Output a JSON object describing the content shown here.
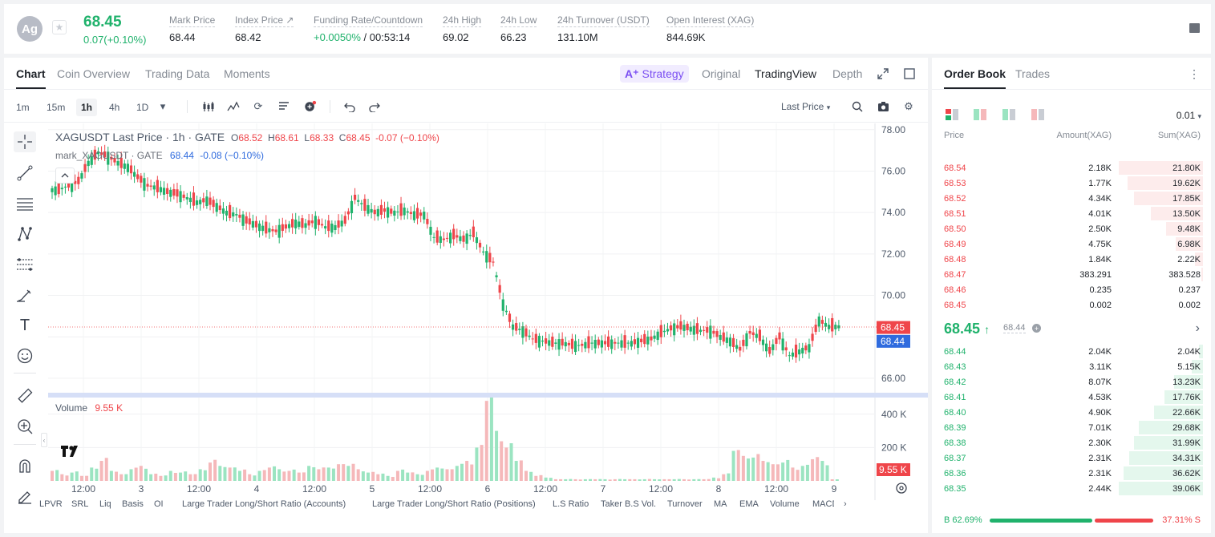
{
  "ticker": {
    "avatar": "Ag",
    "last_price": "68.45",
    "change": "0.07(+0.10%)",
    "stats": [
      {
        "label": "Mark Price",
        "value": "68.44"
      },
      {
        "label": "Index Price ↗",
        "value": "68.42"
      },
      {
        "label": "Funding Rate/Countdown",
        "value_green": "+0.0050%",
        "value": " / 00:53:14"
      },
      {
        "label": "24h High",
        "value": "69.02"
      },
      {
        "label": "24h Low",
        "value": "66.23"
      },
      {
        "label": "24h Turnover (USDT)",
        "value": "131.10M"
      },
      {
        "label": "Open Interest (XAG)",
        "value": "844.69K"
      }
    ]
  },
  "chart_tabs": [
    "Chart",
    "Coin Overview",
    "Trading Data",
    "Moments"
  ],
  "view_tabs": [
    "Original",
    "TradingView",
    "Depth"
  ],
  "strategy_label": "Strategy",
  "timeframes": [
    "1m",
    "15m",
    "1h",
    "4h",
    "1D"
  ],
  "last_price_select": "Last Price",
  "legend": {
    "title": "XAGUSDT Last Price · 1h · GATE",
    "o_label": "O",
    "o": "68.52",
    "h_label": "H",
    "h": "68.61",
    "l_label": "L",
    "l": "68.33",
    "c_label": "C",
    "c": "68.45",
    "chg": "-0.07 (−0.10%)",
    "mark_title": "mark_XAGUSDT · GATE",
    "mark_val": "68.44",
    "mark_chg": "-0.08 (−0.10%)",
    "volume_label": "Volume",
    "volume_val": "9.55 K"
  },
  "price_axis": [
    "78.00",
    "76.00",
    "74.00",
    "72.00",
    "70.00",
    "66.00"
  ],
  "price_tags": {
    "last": "68.45",
    "mark": "68.44"
  },
  "volume_axis": [
    "400 K",
    "200 K"
  ],
  "volume_tag": "9.55 K",
  "time_axis": [
    "12:00",
    "3",
    "12:00",
    "4",
    "12:00",
    "5",
    "12:00",
    "6",
    "12:00",
    "7",
    "12:00",
    "8",
    "12:00",
    "9"
  ],
  "indicators": [
    "LPVR",
    "SRL",
    "Liq",
    "Basis",
    "OI",
    "Large Trader Long/Short Ratio (Accounts)",
    "Large Trader Long/Short Ratio (Positions)",
    "L.S Ratio",
    "Taker B.S Vol.",
    "Turnover",
    "MA",
    "EMA",
    "Volume",
    "MACD"
  ],
  "book_tabs": [
    "Order Book",
    "Trades"
  ],
  "precision": "0.01",
  "book_headers": {
    "price": "Price",
    "amount": "Amount(XAG)",
    "sum": "Sum(XAG)"
  },
  "asks": [
    {
      "price": "68.54",
      "amount": "2.18K",
      "sum": "21.80K",
      "depth": 1.0
    },
    {
      "price": "68.53",
      "amount": "1.77K",
      "sum": "19.62K",
      "depth": 0.9
    },
    {
      "price": "68.52",
      "amount": "4.34K",
      "sum": "17.85K",
      "depth": 0.82
    },
    {
      "price": "68.51",
      "amount": "4.01K",
      "sum": "13.50K",
      "depth": 0.62
    },
    {
      "price": "68.50",
      "amount": "2.50K",
      "sum": "9.48K",
      "depth": 0.44
    },
    {
      "price": "68.49",
      "amount": "4.75K",
      "sum": "6.98K",
      "depth": 0.32
    },
    {
      "price": "68.48",
      "amount": "1.84K",
      "sum": "2.22K",
      "depth": 0.1
    },
    {
      "price": "68.47",
      "amount": "383.291",
      "sum": "383.528",
      "depth": 0.02
    },
    {
      "price": "68.46",
      "amount": "0.235",
      "sum": "0.237",
      "depth": 0.0
    },
    {
      "price": "68.45",
      "amount": "0.002",
      "sum": "0.002",
      "depth": 0.0
    }
  ],
  "mid": {
    "price": "68.45",
    "mark": "68.44"
  },
  "bids": [
    {
      "price": "68.44",
      "amount": "2.04K",
      "sum": "2.04K",
      "depth": 0.05
    },
    {
      "price": "68.43",
      "amount": "3.11K",
      "sum": "5.15K",
      "depth": 0.13
    },
    {
      "price": "68.42",
      "amount": "8.07K",
      "sum": "13.23K",
      "depth": 0.34
    },
    {
      "price": "68.41",
      "amount": "4.53K",
      "sum": "17.76K",
      "depth": 0.46
    },
    {
      "price": "68.40",
      "amount": "4.90K",
      "sum": "22.66K",
      "depth": 0.58
    },
    {
      "price": "68.39",
      "amount": "7.01K",
      "sum": "29.68K",
      "depth": 0.76
    },
    {
      "price": "68.38",
      "amount": "2.30K",
      "sum": "31.99K",
      "depth": 0.82
    },
    {
      "price": "68.37",
      "amount": "2.31K",
      "sum": "34.31K",
      "depth": 0.88
    },
    {
      "price": "68.36",
      "amount": "2.31K",
      "sum": "36.62K",
      "depth": 0.94
    },
    {
      "price": "68.35",
      "amount": "2.44K",
      "sum": "39.06K",
      "depth": 1.0
    }
  ],
  "ratio": {
    "buy": "B 62.69%",
    "sell": "37.31% S",
    "buy_pct": 62.69
  },
  "colors": {
    "up": "#20b26c",
    "down": "#ef454a",
    "accent": "#7b4ff2",
    "mark": "#2f6bde"
  },
  "chart_data": {
    "type": "candlestick",
    "x_ticks": [
      "12:00",
      "3",
      "12:00",
      "4",
      "12:00",
      "5",
      "12:00",
      "6",
      "12:00",
      "7",
      "12:00",
      "8",
      "12:00",
      "9"
    ],
    "price_ylim": [
      65.3,
      78.3
    ],
    "close_path": [
      75.1,
      75.3,
      75.5,
      76.4,
      76.9,
      76.7,
      76.4,
      76.2,
      75.7,
      75.3,
      75.2,
      75.0,
      74.9,
      74.7,
      74.5,
      74.6,
      74.3,
      74.0,
      73.9,
      73.6,
      73.4,
      73.2,
      73.1,
      73.3,
      73.5,
      73.4,
      73.6,
      73.3,
      73.3,
      73.6,
      74.7,
      74.3,
      74.0,
      74.1,
      74.0,
      74.1,
      73.9,
      73.9,
      72.8,
      72.7,
      72.9,
      72.7,
      73.0,
      72.1,
      71.6,
      69.6,
      68.5,
      68.3,
      67.9,
      67.8,
      67.7,
      67.7,
      67.6,
      67.6,
      67.7,
      67.7,
      67.7,
      67.7,
      67.7,
      67.8,
      67.9,
      68.2,
      68.4,
      68.5,
      68.4,
      68.3,
      68.3,
      68.0,
      67.8,
      67.4,
      68.2,
      68.0,
      67.3,
      68.0,
      67.1,
      67.3,
      67.5,
      68.8,
      68.5,
      68.5
    ],
    "volume_ylim": [
      0,
      500000
    ],
    "volume_ticks": [
      "400 K",
      "200 K"
    ],
    "volume_path": [
      60,
      40,
      50,
      30,
      80,
      120,
      60,
      40,
      70,
      90,
      40,
      30,
      60,
      50,
      40,
      70,
      110,
      90,
      80,
      60,
      40,
      60,
      80,
      70,
      60,
      50,
      90,
      70,
      80,
      100,
      90,
      70,
      50,
      40,
      30,
      60,
      50,
      40,
      60,
      80,
      70,
      90,
      120,
      200,
      480,
      300,
      200,
      120,
      60,
      30,
      20,
      10,
      10,
      10,
      10,
      10,
      10,
      10,
      10,
      10,
      10,
      10,
      10,
      10,
      10,
      10,
      10,
      20,
      40,
      180,
      150,
      140,
      120,
      100,
      110,
      80,
      90,
      130,
      120,
      9.55
    ]
  }
}
